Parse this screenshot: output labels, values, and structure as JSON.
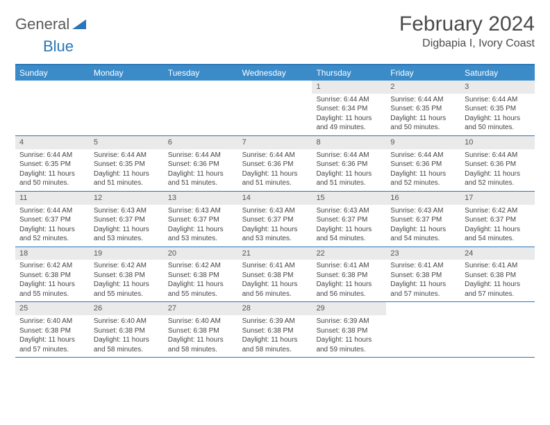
{
  "logo": {
    "general": "General",
    "blue": "Blue"
  },
  "title": "February 2024",
  "location": "Digbapia I, Ivory Coast",
  "colors": {
    "header_bg": "#3b8bc9",
    "header_border": "#2a76b8",
    "daynum_bg": "#eaeaea",
    "text": "#444444"
  },
  "day_names": [
    "Sunday",
    "Monday",
    "Tuesday",
    "Wednesday",
    "Thursday",
    "Friday",
    "Saturday"
  ],
  "weeks": [
    [
      {
        "n": "",
        "sr": "",
        "ss": "",
        "dl": ""
      },
      {
        "n": "",
        "sr": "",
        "ss": "",
        "dl": ""
      },
      {
        "n": "",
        "sr": "",
        "ss": "",
        "dl": ""
      },
      {
        "n": "",
        "sr": "",
        "ss": "",
        "dl": ""
      },
      {
        "n": "1",
        "sr": "Sunrise: 6:44 AM",
        "ss": "Sunset: 6:34 PM",
        "dl": "Daylight: 11 hours and 49 minutes."
      },
      {
        "n": "2",
        "sr": "Sunrise: 6:44 AM",
        "ss": "Sunset: 6:35 PM",
        "dl": "Daylight: 11 hours and 50 minutes."
      },
      {
        "n": "3",
        "sr": "Sunrise: 6:44 AM",
        "ss": "Sunset: 6:35 PM",
        "dl": "Daylight: 11 hours and 50 minutes."
      }
    ],
    [
      {
        "n": "4",
        "sr": "Sunrise: 6:44 AM",
        "ss": "Sunset: 6:35 PM",
        "dl": "Daylight: 11 hours and 50 minutes."
      },
      {
        "n": "5",
        "sr": "Sunrise: 6:44 AM",
        "ss": "Sunset: 6:35 PM",
        "dl": "Daylight: 11 hours and 51 minutes."
      },
      {
        "n": "6",
        "sr": "Sunrise: 6:44 AM",
        "ss": "Sunset: 6:36 PM",
        "dl": "Daylight: 11 hours and 51 minutes."
      },
      {
        "n": "7",
        "sr": "Sunrise: 6:44 AM",
        "ss": "Sunset: 6:36 PM",
        "dl": "Daylight: 11 hours and 51 minutes."
      },
      {
        "n": "8",
        "sr": "Sunrise: 6:44 AM",
        "ss": "Sunset: 6:36 PM",
        "dl": "Daylight: 11 hours and 51 minutes."
      },
      {
        "n": "9",
        "sr": "Sunrise: 6:44 AM",
        "ss": "Sunset: 6:36 PM",
        "dl": "Daylight: 11 hours and 52 minutes."
      },
      {
        "n": "10",
        "sr": "Sunrise: 6:44 AM",
        "ss": "Sunset: 6:36 PM",
        "dl": "Daylight: 11 hours and 52 minutes."
      }
    ],
    [
      {
        "n": "11",
        "sr": "Sunrise: 6:44 AM",
        "ss": "Sunset: 6:37 PM",
        "dl": "Daylight: 11 hours and 52 minutes."
      },
      {
        "n": "12",
        "sr": "Sunrise: 6:43 AM",
        "ss": "Sunset: 6:37 PM",
        "dl": "Daylight: 11 hours and 53 minutes."
      },
      {
        "n": "13",
        "sr": "Sunrise: 6:43 AM",
        "ss": "Sunset: 6:37 PM",
        "dl": "Daylight: 11 hours and 53 minutes."
      },
      {
        "n": "14",
        "sr": "Sunrise: 6:43 AM",
        "ss": "Sunset: 6:37 PM",
        "dl": "Daylight: 11 hours and 53 minutes."
      },
      {
        "n": "15",
        "sr": "Sunrise: 6:43 AM",
        "ss": "Sunset: 6:37 PM",
        "dl": "Daylight: 11 hours and 54 minutes."
      },
      {
        "n": "16",
        "sr": "Sunrise: 6:43 AM",
        "ss": "Sunset: 6:37 PM",
        "dl": "Daylight: 11 hours and 54 minutes."
      },
      {
        "n": "17",
        "sr": "Sunrise: 6:42 AM",
        "ss": "Sunset: 6:37 PM",
        "dl": "Daylight: 11 hours and 54 minutes."
      }
    ],
    [
      {
        "n": "18",
        "sr": "Sunrise: 6:42 AM",
        "ss": "Sunset: 6:38 PM",
        "dl": "Daylight: 11 hours and 55 minutes."
      },
      {
        "n": "19",
        "sr": "Sunrise: 6:42 AM",
        "ss": "Sunset: 6:38 PM",
        "dl": "Daylight: 11 hours and 55 minutes."
      },
      {
        "n": "20",
        "sr": "Sunrise: 6:42 AM",
        "ss": "Sunset: 6:38 PM",
        "dl": "Daylight: 11 hours and 55 minutes."
      },
      {
        "n": "21",
        "sr": "Sunrise: 6:41 AM",
        "ss": "Sunset: 6:38 PM",
        "dl": "Daylight: 11 hours and 56 minutes."
      },
      {
        "n": "22",
        "sr": "Sunrise: 6:41 AM",
        "ss": "Sunset: 6:38 PM",
        "dl": "Daylight: 11 hours and 56 minutes."
      },
      {
        "n": "23",
        "sr": "Sunrise: 6:41 AM",
        "ss": "Sunset: 6:38 PM",
        "dl": "Daylight: 11 hours and 57 minutes."
      },
      {
        "n": "24",
        "sr": "Sunrise: 6:41 AM",
        "ss": "Sunset: 6:38 PM",
        "dl": "Daylight: 11 hours and 57 minutes."
      }
    ],
    [
      {
        "n": "25",
        "sr": "Sunrise: 6:40 AM",
        "ss": "Sunset: 6:38 PM",
        "dl": "Daylight: 11 hours and 57 minutes."
      },
      {
        "n": "26",
        "sr": "Sunrise: 6:40 AM",
        "ss": "Sunset: 6:38 PM",
        "dl": "Daylight: 11 hours and 58 minutes."
      },
      {
        "n": "27",
        "sr": "Sunrise: 6:40 AM",
        "ss": "Sunset: 6:38 PM",
        "dl": "Daylight: 11 hours and 58 minutes."
      },
      {
        "n": "28",
        "sr": "Sunrise: 6:39 AM",
        "ss": "Sunset: 6:38 PM",
        "dl": "Daylight: 11 hours and 58 minutes."
      },
      {
        "n": "29",
        "sr": "Sunrise: 6:39 AM",
        "ss": "Sunset: 6:38 PM",
        "dl": "Daylight: 11 hours and 59 minutes."
      },
      {
        "n": "",
        "sr": "",
        "ss": "",
        "dl": ""
      },
      {
        "n": "",
        "sr": "",
        "ss": "",
        "dl": ""
      }
    ]
  ]
}
